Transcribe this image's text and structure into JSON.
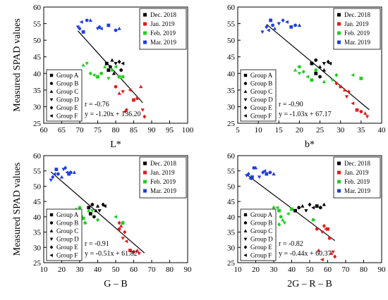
{
  "chart_data": [
    {
      "type": "scatter",
      "title": "",
      "xlabel": "L*",
      "ylabel": "Measured SPAD values",
      "xlim": [
        60,
        100
      ],
      "ylim": [
        25,
        60
      ],
      "xticks": [
        60,
        65,
        70,
        75,
        80,
        85,
        90,
        95,
        100
      ],
      "yticks": [
        25,
        30,
        35,
        40,
        45,
        50,
        55,
        60
      ],
      "r_text": "r = -0.76",
      "eq_text": "y = -1.20x + 136.20",
      "fit": {
        "slope": -1.2,
        "intercept": 136.2,
        "x_range": [
          69.5,
          87.5
        ]
      },
      "series": [
        {
          "name": "Dec. 2018",
          "color": "#000000",
          "points": [
            [
              77.5,
              43
            ],
            [
              78.5,
              42
            ],
            [
              79,
              44
            ],
            [
              80,
              43
            ],
            [
              81,
              43.5
            ],
            [
              82,
              43
            ],
            [
              78,
              41
            ],
            [
              81.5,
              41
            ],
            [
              79.5,
              40
            ]
          ]
        },
        {
          "name": "Jan. 2019",
          "color": "#e41a1c",
          "points": [
            [
              80,
              36
            ],
            [
              81,
              34
            ],
            [
              82,
              34.5
            ],
            [
              83,
              29
            ],
            [
              84,
              35
            ],
            [
              85,
              32
            ],
            [
              86,
              32.5
            ],
            [
              87,
              36
            ],
            [
              87.5,
              29
            ],
            [
              88,
              27
            ],
            [
              82.5,
              28.5
            ]
          ]
        },
        {
          "name": "Feb. 2019",
          "color": "#22cc22",
          "points": [
            [
              71,
              42.5
            ],
            [
              72,
              43
            ],
            [
              73,
              40
            ],
            [
              74,
              39.5
            ],
            [
              75,
              39
            ],
            [
              76,
              40
            ],
            [
              77,
              42
            ],
            [
              78,
              38.5
            ],
            [
              79,
              41
            ],
            [
              80,
              42
            ],
            [
              81,
              39
            ],
            [
              82,
              39
            ]
          ]
        },
        {
          "name": "Mar. 2019",
          "color": "#1f3ce8",
          "points": [
            [
              69.5,
              54
            ],
            [
              70,
              53.5
            ],
            [
              70.5,
              55.5
            ],
            [
              71,
              52.5
            ],
            [
              72,
              56
            ],
            [
              73,
              56
            ],
            [
              75,
              53.5
            ],
            [
              75.5,
              54
            ],
            [
              76,
              53.5
            ],
            [
              78,
              54.5
            ],
            [
              80,
              53
            ],
            [
              81,
              53.5
            ]
          ]
        }
      ]
    },
    {
      "type": "scatter",
      "title": "",
      "xlabel": "b*",
      "ylabel": "",
      "xlim": [
        5,
        40
      ],
      "ylim": [
        25,
        60
      ],
      "xticks": [
        5,
        10,
        15,
        20,
        25,
        30,
        35,
        40
      ],
      "yticks": [
        25,
        30,
        35,
        40,
        45,
        50,
        55,
        60
      ],
      "r_text": "r = -0.90",
      "eq_text": "y = -1.03x + 67.17",
      "fit": {
        "slope": -1.03,
        "intercept": 67.17,
        "x_range": [
          12,
          37
        ]
      },
      "series": [
        {
          "name": "Dec. 2018",
          "color": "#000000",
          "points": [
            [
              23,
              43
            ],
            [
              24,
              44
            ],
            [
              25,
              42
            ],
            [
              26,
              43
            ],
            [
              27,
              43.5
            ],
            [
              27.5,
              43
            ],
            [
              24,
              40
            ],
            [
              25,
              39
            ],
            [
              26,
              41
            ]
          ]
        },
        {
          "name": "Jan. 2019",
          "color": "#e41a1c",
          "points": [
            [
              30,
              36
            ],
            [
              31,
              35
            ],
            [
              31.5,
              33
            ],
            [
              32,
              34.5
            ],
            [
              33,
              31
            ],
            [
              34,
              29
            ],
            [
              35,
              28.5
            ],
            [
              36,
              28
            ],
            [
              36.5,
              27
            ],
            [
              29,
              37
            ]
          ]
        },
        {
          "name": "Feb. 2019",
          "color": "#22cc22",
          "points": [
            [
              19,
              41
            ],
            [
              20,
              40
            ],
            [
              21,
              40.5
            ],
            [
              22,
              39
            ],
            [
              23,
              38
            ],
            [
              24,
              41
            ],
            [
              26,
              37.5
            ],
            [
              28,
              38
            ],
            [
              29,
              39.5
            ],
            [
              33,
              39.5
            ],
            [
              35,
              38.5
            ],
            [
              20,
              42
            ]
          ]
        },
        {
          "name": "Mar. 2019",
          "color": "#1f3ce8",
          "points": [
            [
              11,
              52.5
            ],
            [
              12,
              54
            ],
            [
              12.5,
              53
            ],
            [
              13,
              56
            ],
            [
              13.5,
              54.5
            ],
            [
              14,
              53.5
            ],
            [
              15,
              55
            ],
            [
              16,
              56
            ],
            [
              17,
              55.5
            ],
            [
              18,
              54
            ],
            [
              19,
              54.5
            ],
            [
              20,
              54.5
            ]
          ]
        }
      ]
    },
    {
      "type": "scatter",
      "title": "",
      "xlabel": "G – B",
      "ylabel": "Measured SPAD values",
      "xlim": [
        10,
        90
      ],
      "ylim": [
        25,
        60
      ],
      "xticks": [
        10,
        20,
        30,
        40,
        50,
        60,
        70,
        80,
        90
      ],
      "yticks": [
        25,
        30,
        35,
        40,
        45,
        50,
        55,
        60
      ],
      "r_text": "r = -0.91",
      "eq_text": "y = -0.51x + 61.82",
      "fit": {
        "slope": -0.51,
        "intercept": 61.82,
        "x_range": [
          14,
          66
        ]
      },
      "series": [
        {
          "name": "Dec. 2018",
          "color": "#000000",
          "points": [
            [
              35,
              43
            ],
            [
              37,
              44
            ],
            [
              40,
              43.5
            ],
            [
              41,
              42
            ],
            [
              43,
              44
            ],
            [
              44,
              43.5
            ],
            [
              36,
              41
            ],
            [
              38,
              40
            ],
            [
              39,
              42
            ]
          ]
        },
        {
          "name": "Jan. 2019",
          "color": "#e41a1c",
          "points": [
            [
              52,
              36
            ],
            [
              53,
              37
            ],
            [
              54,
              33
            ],
            [
              55,
              35
            ],
            [
              56,
              32
            ],
            [
              58,
              29
            ],
            [
              60,
              28.5
            ],
            [
              62,
              29
            ],
            [
              63,
              28
            ],
            [
              52,
              38
            ]
          ]
        },
        {
          "name": "Feb. 2019",
          "color": "#22cc22",
          "points": [
            [
              28,
              42.5
            ],
            [
              29,
              42
            ],
            [
              30,
              41
            ],
            [
              31,
              40
            ],
            [
              32,
              39.5
            ],
            [
              33,
              38
            ],
            [
              35,
              42
            ],
            [
              37,
              42
            ],
            [
              40,
              39
            ],
            [
              50,
              40
            ],
            [
              54,
              38
            ],
            [
              30,
              43
            ]
          ]
        },
        {
          "name": "Mar. 2019",
          "color": "#1f3ce8",
          "points": [
            [
              14,
              52
            ],
            [
              15,
              53
            ],
            [
              16,
              54
            ],
            [
              17,
              55.5
            ],
            [
              18,
              54
            ],
            [
              20,
              53
            ],
            [
              21,
              55.5
            ],
            [
              22,
              56
            ],
            [
              23,
              54.5
            ],
            [
              24,
              54
            ],
            [
              25,
              54.5
            ],
            [
              27,
              54.5
            ]
          ]
        }
      ]
    },
    {
      "type": "scatter",
      "title": "",
      "xlabel": "2G – R – B",
      "ylabel": "",
      "xlim": [
        10,
        90
      ],
      "ylim": [
        25,
        60
      ],
      "xticks": [
        10,
        20,
        30,
        40,
        50,
        60,
        70,
        80,
        90
      ],
      "yticks": [
        25,
        30,
        35,
        40,
        45,
        50,
        55,
        60
      ],
      "r_text": "r = -0.82",
      "eq_text": "y = -0.44x + 60.37",
      "fit": {
        "slope": -0.44,
        "intercept": 60.37,
        "x_range": [
          15,
          64
        ]
      },
      "series": [
        {
          "name": "Dec. 2018",
          "color": "#000000",
          "points": [
            [
              42,
              42
            ],
            [
              44,
              43
            ],
            [
              46,
              43.5
            ],
            [
              48,
              42
            ],
            [
              50,
              44
            ],
            [
              52,
              43
            ],
            [
              54,
              43.5
            ],
            [
              56,
              43
            ],
            [
              58,
              44
            ]
          ]
        },
        {
          "name": "Jan. 2019",
          "color": "#e41a1c",
          "points": [
            [
              54,
              36
            ],
            [
              55,
              29
            ],
            [
              57,
              35
            ],
            [
              58,
              37
            ],
            [
              59,
              36
            ],
            [
              60,
              36
            ],
            [
              61,
              33
            ],
            [
              62,
              28
            ],
            [
              63,
              28.5
            ],
            [
              64,
              27
            ],
            [
              57,
              26
            ]
          ]
        },
        {
          "name": "Feb. 2019",
          "color": "#22cc22",
          "points": [
            [
              26,
              40
            ],
            [
              28,
              42
            ],
            [
              30,
              43
            ],
            [
              32,
              43
            ],
            [
              33,
              42
            ],
            [
              34,
              40
            ],
            [
              35,
              39
            ],
            [
              36,
              38
            ],
            [
              33,
              37.5
            ],
            [
              38,
              41
            ],
            [
              40,
              42.5
            ],
            [
              52,
              39
            ]
          ]
        },
        {
          "name": "Mar. 2019",
          "color": "#1f3ce8",
          "points": [
            [
              15,
              53.5
            ],
            [
              16,
              54
            ],
            [
              17,
              52.5
            ],
            [
              18,
              53
            ],
            [
              19,
              56
            ],
            [
              20,
              56
            ],
            [
              22,
              53
            ],
            [
              24,
              54.5
            ],
            [
              25,
              55
            ],
            [
              26,
              54
            ],
            [
              28,
              54.5
            ],
            [
              30,
              54
            ]
          ]
        }
      ]
    }
  ],
  "group_legend": [
    "Group A",
    "Group B",
    "Group C",
    "Group D",
    "Group E",
    "Group F"
  ],
  "group_markers": [
    "square",
    "circle",
    "triangle-up",
    "triangle-down",
    "diamond",
    "triangle-left"
  ]
}
